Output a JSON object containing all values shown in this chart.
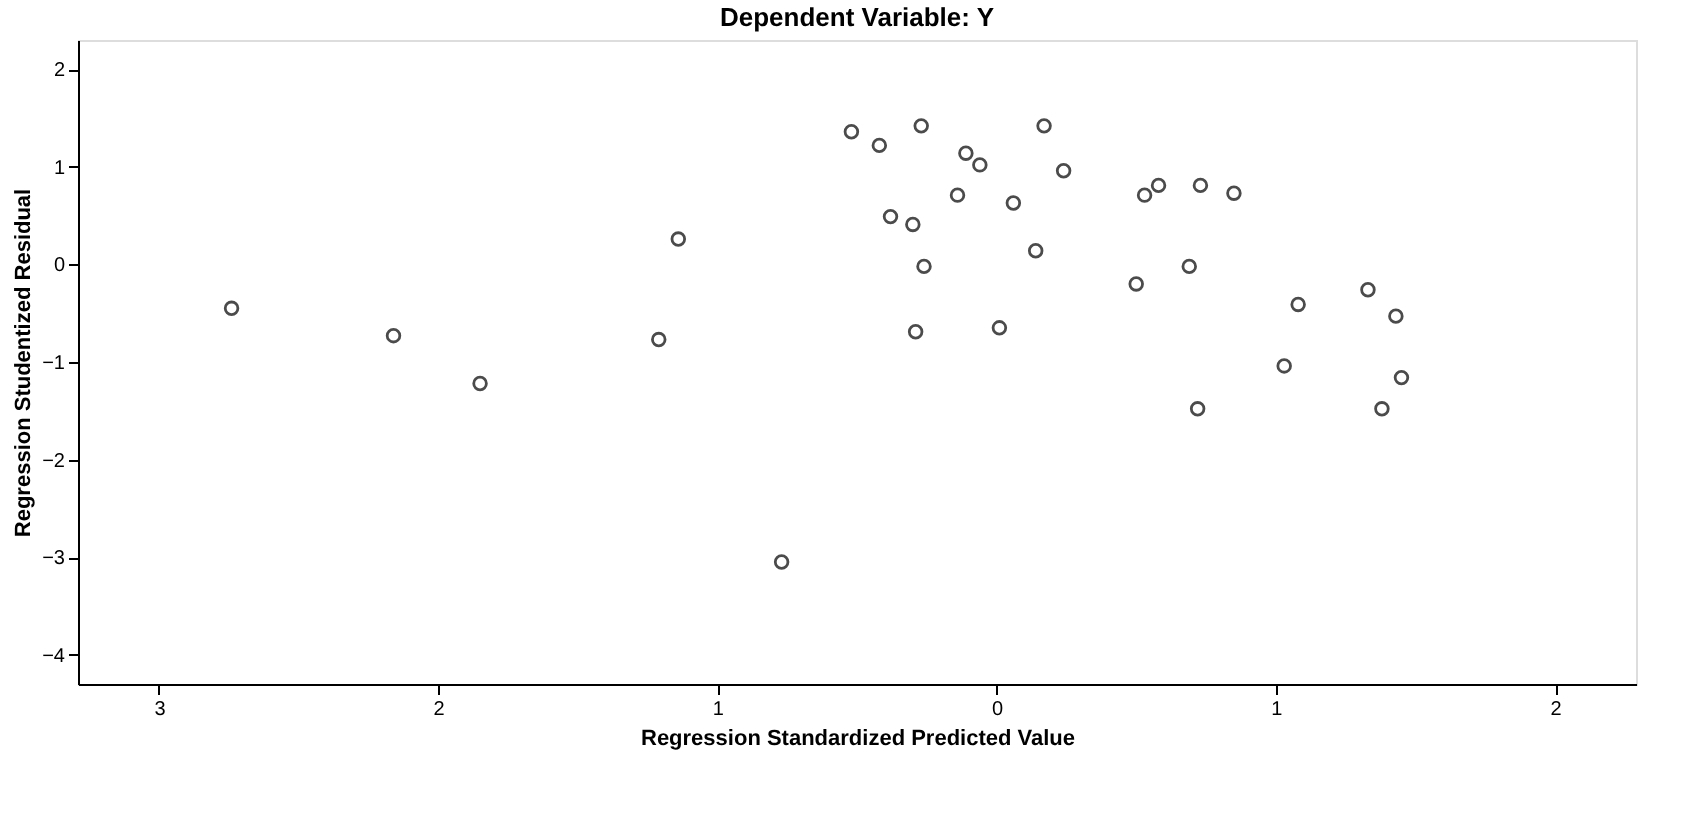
{
  "chart_data": {
    "type": "scatter",
    "title": "Dependent Variable: Y",
    "xlabel": "Regression Standardized Predicted Value",
    "ylabel": "Regression Studentized Residual",
    "x": [
      -2.74,
      -2.16,
      -1.85,
      -1.21,
      -1.14,
      -0.77,
      -0.52,
      -0.42,
      -0.27,
      0.17,
      -0.11,
      -0.06,
      0.24,
      -0.14,
      0.06,
      -0.38,
      -0.3,
      -0.26,
      0.14,
      0.53,
      0.58,
      0.73,
      0.85,
      0.69,
      0.5,
      1.08,
      1.33,
      1.43,
      -0.29,
      0.01,
      1.03,
      1.45,
      0.72,
      1.38
    ],
    "series": [
      {
        "color": "#000000",
        "values": [
          -0.45,
          -0.73,
          -1.22,
          -0.77,
          0.26,
          -3.05,
          1.36,
          1.22,
          1.42,
          1.42,
          1.14,
          1.02,
          0.96,
          0.71,
          0.63,
          0.49,
          0.41,
          -0.02,
          0.14,
          0.71,
          0.81,
          0.81,
          0.73,
          -0.02,
          -0.2,
          -0.41,
          -0.26,
          -0.53,
          -0.69,
          -0.65,
          -1.04,
          -1.16,
          -1.48,
          -1.48
        ]
      }
    ],
    "xlim": [
      -3.29,
      2.29
    ],
    "ylim": [
      -4.3,
      2.3
    ],
    "xticks": [
      {
        "value": -3,
        "label": "3"
      },
      {
        "value": -2,
        "label": "2"
      },
      {
        "value": -1,
        "label": "1"
      },
      0,
      1,
      2
    ],
    "yticks": [
      -4,
      -3,
      -2,
      -1,
      0,
      1,
      2
    ],
    "marker": "circle",
    "grid": false,
    "legend": false
  }
}
